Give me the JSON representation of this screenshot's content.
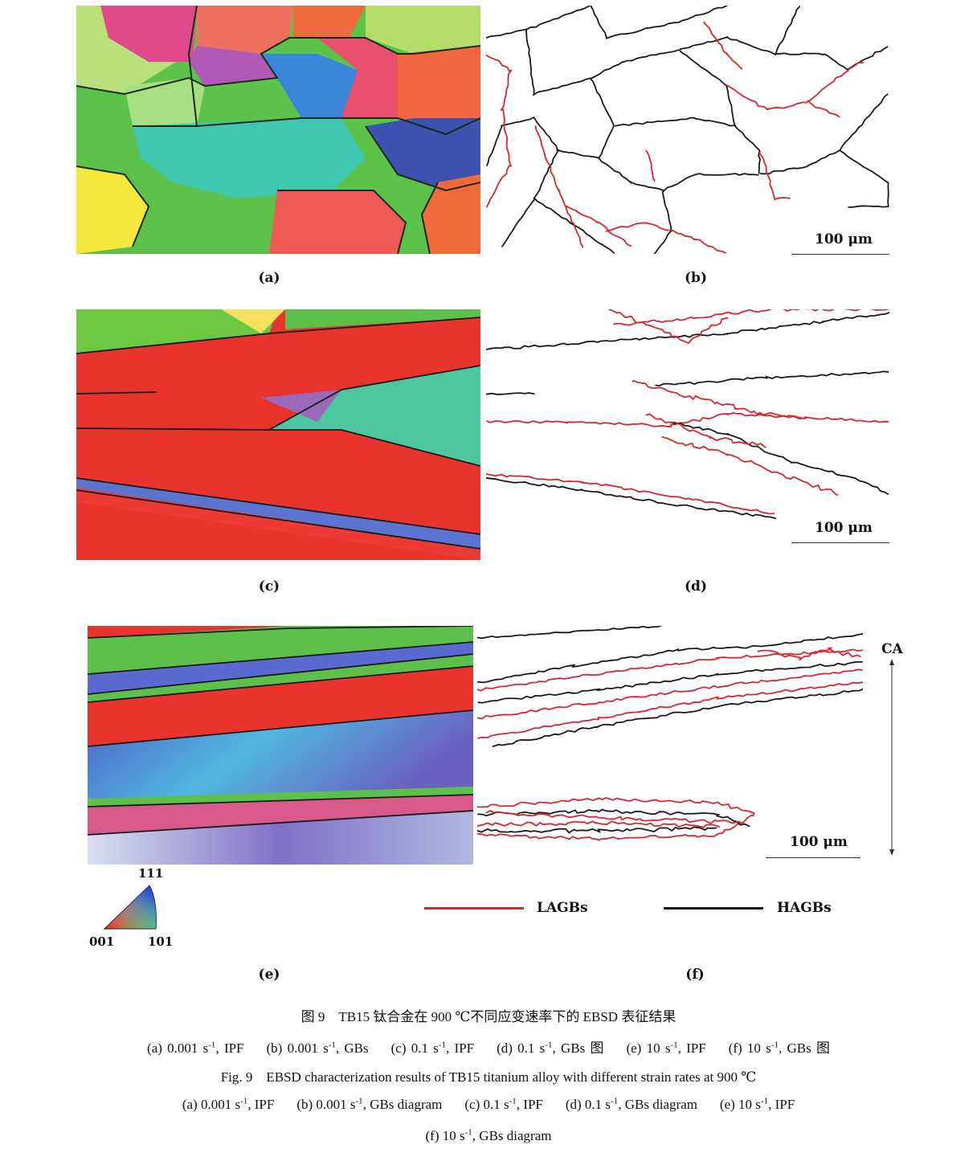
{
  "figure": {
    "panels": [
      {
        "id": "a",
        "label": "(a)",
        "type": "IPF map"
      },
      {
        "id": "b",
        "label": "(b)",
        "type": "GBs diagram",
        "scale_bar": "100 μm"
      },
      {
        "id": "c",
        "label": "(c)",
        "type": "IPF map"
      },
      {
        "id": "d",
        "label": "(d)",
        "type": "GBs diagram",
        "scale_bar": "100 μm"
      },
      {
        "id": "e",
        "label": "(e)",
        "type": "IPF map"
      },
      {
        "id": "f",
        "label": "(f)",
        "type": "GBs diagram",
        "scale_bar": "100 μm",
        "axis_label": "CA"
      }
    ],
    "ipf_legend": {
      "top": "111",
      "bottom_left": "001",
      "bottom_right": "101"
    },
    "gb_legend": [
      {
        "name": "LAGBs",
        "color": "#d8262e"
      },
      {
        "name": "HAGBs",
        "color": "#111111"
      }
    ]
  },
  "caption": {
    "cn_title": "图 9　TB15 钛合金在 900 ℃不同应变速率下的 EBSD 表征结果",
    "cn_items": [
      {
        "pre": "(a) 0.001 s",
        "sup": "-1",
        "post": ", IPF"
      },
      {
        "pre": "(b) 0.001 s",
        "sup": "-1",
        "post": ", GBs"
      },
      {
        "pre": "(c) 0.1 s",
        "sup": "-1",
        "post": ", IPF"
      },
      {
        "pre": "(d) 0.1 s",
        "sup": "-1",
        "post": ", GBs 图"
      },
      {
        "pre": "(e) 10 s",
        "sup": "-1",
        "post": ", IPF"
      },
      {
        "pre": "(f) 10 s",
        "sup": "-1",
        "post": ", GBs 图"
      }
    ],
    "en_title": "Fig. 9　EBSD characterization results of TB15 titanium alloy with different strain rates at 900 ℃",
    "en_items_line1": [
      {
        "pre": "(a) 0.001 s",
        "sup": "-1",
        "post": ", IPF"
      },
      {
        "pre": "(b) 0.001 s",
        "sup": "-1",
        "post": ", GBs diagram"
      },
      {
        "pre": "(c) 0.1 s",
        "sup": "-1",
        "post": ", IPF"
      },
      {
        "pre": "(d) 0.1 s",
        "sup": "-1",
        "post": ", GBs diagram"
      },
      {
        "pre": "(e) 10 s",
        "sup": "-1",
        "post": ", IPF"
      }
    ],
    "en_items_line2": [
      {
        "pre": "(f) 10 s",
        "sup": "-1",
        "post": ", GBs diagram"
      }
    ]
  }
}
